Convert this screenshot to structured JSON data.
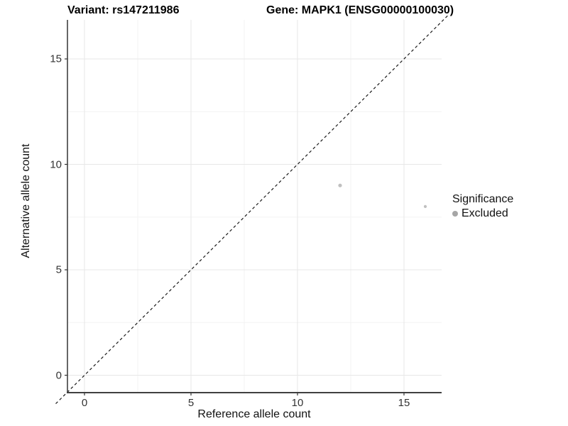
{
  "figure": {
    "title_variant": "Variant: rs147211986",
    "title_gene": "Gene: MAPK1 (ENSG00000100030)"
  },
  "chart_data": {
    "type": "scatter",
    "title": "Variant: rs147211986  Gene: MAPK1 (ENSG00000100030)",
    "xlabel": "Reference allele count",
    "ylabel": "Alternative allele count",
    "xlim": [
      -1.0,
      16.8
    ],
    "ylim": [
      -0.85,
      16.85
    ],
    "x_ticks": [
      0,
      5,
      10,
      15
    ],
    "y_ticks": [
      0,
      5,
      10,
      15
    ],
    "x_tick_labels": [
      "0",
      "5",
      "10",
      "15"
    ],
    "y_tick_labels": [
      "0",
      "5",
      "10",
      "15"
    ],
    "grid": {
      "major": true,
      "minor": true,
      "minor_step": 2.5
    },
    "identity_line": {
      "slope": 1,
      "intercept": 0,
      "style": "dashed"
    },
    "series": [
      {
        "name": "Excluded",
        "color": "#c0c0c0",
        "points": [
          {
            "x": 12,
            "y": 9,
            "r": 2.6
          },
          {
            "x": 16,
            "y": 8,
            "r": 2.1
          }
        ]
      }
    ],
    "legend": {
      "title": "Significance",
      "position": "right",
      "items": [
        {
          "label": "Excluded",
          "color": "#a6a6a6"
        }
      ]
    }
  },
  "colors": {
    "background": "#ffffff",
    "axis_line": "#404040",
    "grid_major": "#e7e7e7",
    "grid_minor": "#f3f3f3",
    "tick_mark": "#333333",
    "tick_text": "#333333",
    "title_text": "#000000",
    "dashed_line": "#1a1a1a"
  }
}
